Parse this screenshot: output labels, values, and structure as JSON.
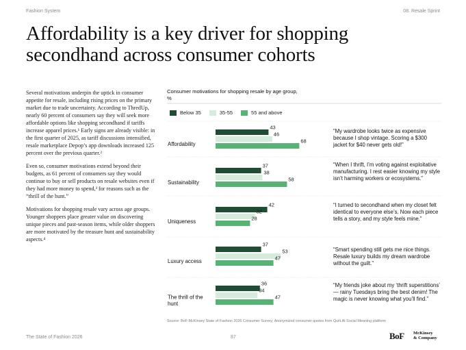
{
  "header": {
    "left": "Fashion System",
    "right": "08. Resale Sprint"
  },
  "title": "Affordability is a key driver for shopping secondhand across consumer cohorts",
  "body": [
    "Several motivations underpin the uptick in consumer appetite for resale, including rising prices on the primary market due to trade uncertainty. According to ThredUp, nearly 60 percent of consumers say they will seek more affordable options like shopping secondhand if tariffs increase apparel prices.¹ Early signs are already visible: in the first quarter of 2025, as tariff discussions intensified, resale marketplace Depop’s app downloads increased 125 percent over the previous quarter.²",
    "Even so, consumer motivations extend beyond their budgets, as 61 percent of consumers say they would continue to buy or sell products on resale websites even if they had more money to spend,³ for reasons such as the “thrill of the hunt.”",
    "Motivations for shopping resale vary across age groups. Younger shoppers place greater value on discovering unique pieces and past-season items, while older shoppers are more motivated by the treasure hunt and sustainability aspects.⁴"
  ],
  "chart_data": {
    "type": "bar",
    "orientation": "horizontal",
    "title": "Consumer motivations for shopping resale by age group,",
    "unit": "%",
    "categories": [
      "Affordability",
      "Sustainability",
      "Uniqueness",
      "Luxury access",
      "The thrill of the hunt"
    ],
    "series": [
      {
        "name": "Below 35",
        "color": "#1e4d34",
        "values": [
          43,
          37,
          42,
          37,
          36
        ]
      },
      {
        "name": "35-55",
        "color": "#d5ecdd",
        "values": [
          46,
          38,
          32,
          53,
          34
        ]
      },
      {
        "name": "55 and above",
        "color": "#57b373",
        "values": [
          68,
          58,
          28,
          47,
          47
        ]
      }
    ],
    "xlim": [
      0,
      100
    ]
  },
  "quotes": [
    "“My wardrobe looks twice as expensive because I shop vintage. Scoring a $300 jacket for $40 never gets old!”",
    "“When I thrift, I’m voting against exploitative manufacturing. I rest easier knowing my style isn’t harming workers or ecosystems.”",
    "“I turned to secondhand when my closet felt identical to everyone else’s. Now each piece tells a story, and my style feels mine.”",
    "“Smart spending still gets me nice things. Resale luxury builds my dream wardrobe without the guilt.”",
    "“My friends joke about my ‘thrift superstitions’ — rainy Tuesdays bring the best denim! The magic is never knowing what you’ll find.”"
  ],
  "source": "Source: BoF-McKinsey State of Fashion 2026 Consumer Survey; Anonymized consumer quotes from Quilt.AI Social Meaning platform",
  "footer": {
    "left": "The State of Fashion 2026",
    "page": "87"
  },
  "logos": {
    "bof": "BoF",
    "mckinsey_line1": "McKinsey",
    "mckinsey_line2": "& Company"
  }
}
